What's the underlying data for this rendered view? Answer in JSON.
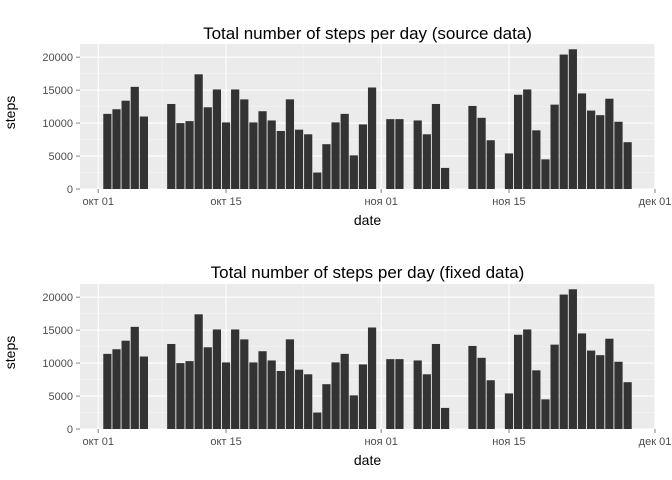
{
  "chart_data": [
    {
      "type": "bar",
      "title": "Total number of steps per day (source data)",
      "xlabel": "date",
      "ylabel": "steps",
      "x_ticks": [
        {
          "label": "окт 01",
          "date": "2012-10-01"
        },
        {
          "label": "окт 15",
          "date": "2012-10-15"
        },
        {
          "label": "ноя 01",
          "date": "2012-11-01"
        },
        {
          "label": "ноя 15",
          "date": "2012-11-15"
        },
        {
          "label": "дек 01",
          "date": "2012-12-01"
        }
      ],
      "y_ticks": [
        0,
        5000,
        10000,
        15000,
        20000
      ],
      "xlim": [
        "2012-09-29",
        "2012-12-01"
      ],
      "ylim": [
        0,
        22000
      ],
      "grid": true,
      "bar_color": "#333333",
      "panel_color": "#ebebeb",
      "dates": [
        "2012-10-02",
        "2012-10-03",
        "2012-10-04",
        "2012-10-05",
        "2012-10-06",
        "2012-10-07",
        "2012-10-09",
        "2012-10-10",
        "2012-10-11",
        "2012-10-12",
        "2012-10-13",
        "2012-10-14",
        "2012-10-15",
        "2012-10-16",
        "2012-10-17",
        "2012-10-18",
        "2012-10-19",
        "2012-10-20",
        "2012-10-21",
        "2012-10-22",
        "2012-10-23",
        "2012-10-24",
        "2012-10-25",
        "2012-10-26",
        "2012-10-27",
        "2012-10-28",
        "2012-10-29",
        "2012-10-30",
        "2012-10-31",
        "2012-11-02",
        "2012-11-03",
        "2012-11-05",
        "2012-11-06",
        "2012-11-07",
        "2012-11-08",
        "2012-11-11",
        "2012-11-12",
        "2012-11-13",
        "2012-11-15",
        "2012-11-16",
        "2012-11-17",
        "2012-11-18",
        "2012-11-19",
        "2012-11-20",
        "2012-11-21",
        "2012-11-22",
        "2012-11-23",
        "2012-11-24",
        "2012-11-25",
        "2012-11-26",
        "2012-11-27",
        "2012-11-28",
        "2012-11-29"
      ],
      "values": [
        11400,
        12100,
        13400,
        15500,
        11000,
        0,
        12900,
        10000,
        10300,
        17400,
        12400,
        15100,
        10100,
        15100,
        13600,
        10100,
        11800,
        10400,
        8800,
        13600,
        9000,
        8300,
        2500,
        6800,
        10100,
        11400,
        5100,
        9800,
        15400,
        10600,
        10600,
        10400,
        8300,
        12900,
        3200,
        12600,
        10800,
        7400,
        5400,
        14300,
        15100,
        8900,
        4500,
        12800,
        20400,
        21200,
        14500,
        11900,
        11200,
        13700,
        10200,
        7100,
        0
      ]
    },
    {
      "type": "bar",
      "title": "Total number of steps per day (fixed data)",
      "xlabel": "date",
      "ylabel": "steps",
      "x_ticks": [
        {
          "label": "окт 01",
          "date": "2012-10-01"
        },
        {
          "label": "окт 15",
          "date": "2012-10-15"
        },
        {
          "label": "ноя 01",
          "date": "2012-11-01"
        },
        {
          "label": "ноя 15",
          "date": "2012-11-15"
        },
        {
          "label": "дек 01",
          "date": "2012-12-01"
        }
      ],
      "y_ticks": [
        0,
        5000,
        10000,
        15000,
        20000
      ],
      "xlim": [
        "2012-09-29",
        "2012-12-01"
      ],
      "ylim": [
        0,
        22000
      ],
      "grid": true,
      "bar_color": "#333333",
      "panel_color": "#ebebeb",
      "dates": [
        "2012-10-02",
        "2012-10-03",
        "2012-10-04",
        "2012-10-05",
        "2012-10-06",
        "2012-10-07",
        "2012-10-09",
        "2012-10-10",
        "2012-10-11",
        "2012-10-12",
        "2012-10-13",
        "2012-10-14",
        "2012-10-15",
        "2012-10-16",
        "2012-10-17",
        "2012-10-18",
        "2012-10-19",
        "2012-10-20",
        "2012-10-21",
        "2012-10-22",
        "2012-10-23",
        "2012-10-24",
        "2012-10-25",
        "2012-10-26",
        "2012-10-27",
        "2012-10-28",
        "2012-10-29",
        "2012-10-30",
        "2012-10-31",
        "2012-11-02",
        "2012-11-03",
        "2012-11-05",
        "2012-11-06",
        "2012-11-07",
        "2012-11-08",
        "2012-11-11",
        "2012-11-12",
        "2012-11-13",
        "2012-11-15",
        "2012-11-16",
        "2012-11-17",
        "2012-11-18",
        "2012-11-19",
        "2012-11-20",
        "2012-11-21",
        "2012-11-22",
        "2012-11-23",
        "2012-11-24",
        "2012-11-25",
        "2012-11-26",
        "2012-11-27",
        "2012-11-28",
        "2012-11-29"
      ],
      "values": [
        11400,
        12100,
        13400,
        15500,
        11000,
        0,
        12900,
        10000,
        10300,
        17400,
        12400,
        15100,
        10100,
        15100,
        13600,
        10100,
        11800,
        10400,
        8800,
        13600,
        9000,
        8300,
        2500,
        6800,
        10100,
        11400,
        5100,
        9800,
        15400,
        10600,
        10600,
        10400,
        8300,
        12900,
        3200,
        12600,
        10800,
        7400,
        5400,
        14300,
        15100,
        8900,
        4500,
        12800,
        20400,
        21200,
        14500,
        11900,
        11200,
        13700,
        10200,
        7100,
        0
      ]
    }
  ]
}
